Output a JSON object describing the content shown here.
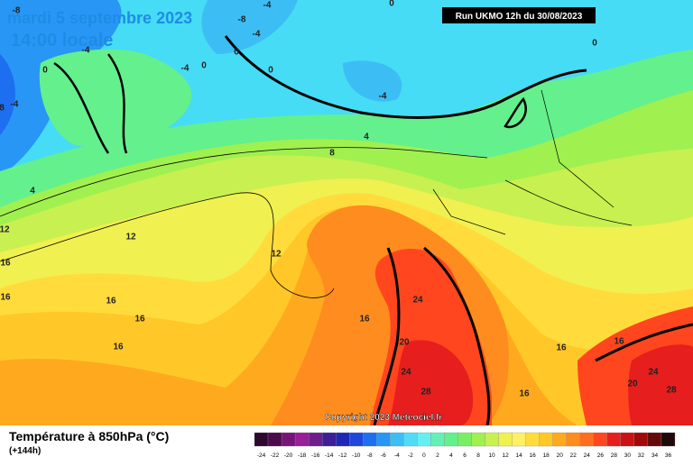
{
  "header": {
    "date": "mardi 5 septembre 2023",
    "time": "14:00 locale",
    "run": "Run UKMO 12h du 30/08/2023"
  },
  "map": {
    "contour_labels": [
      "-8",
      "-4",
      "0",
      "-8",
      "-4",
      "-4",
      "0",
      "-4",
      "0",
      "0",
      "0",
      "0",
      "-4",
      "-4",
      "8",
      "4",
      "8",
      "4",
      "12",
      "12",
      "12",
      "16",
      "16",
      "16",
      "16",
      "16",
      "16",
      "24",
      "20",
      "24",
      "28",
      "16",
      "16",
      "16",
      "24",
      "20",
      "28"
    ]
  },
  "copyright": "Copyright 2023 Meteociel.fr",
  "legend": {
    "title": "Température à 850hPa (°C)",
    "lead_time": "(+144h)",
    "scale": [
      -24,
      -22,
      -20,
      -18,
      -16,
      -14,
      -12,
      -10,
      -8,
      -6,
      -4,
      -2,
      0,
      2,
      4,
      6,
      8,
      10,
      12,
      14,
      16,
      18,
      20,
      22,
      24,
      26,
      28,
      30,
      32,
      34,
      36
    ]
  }
}
